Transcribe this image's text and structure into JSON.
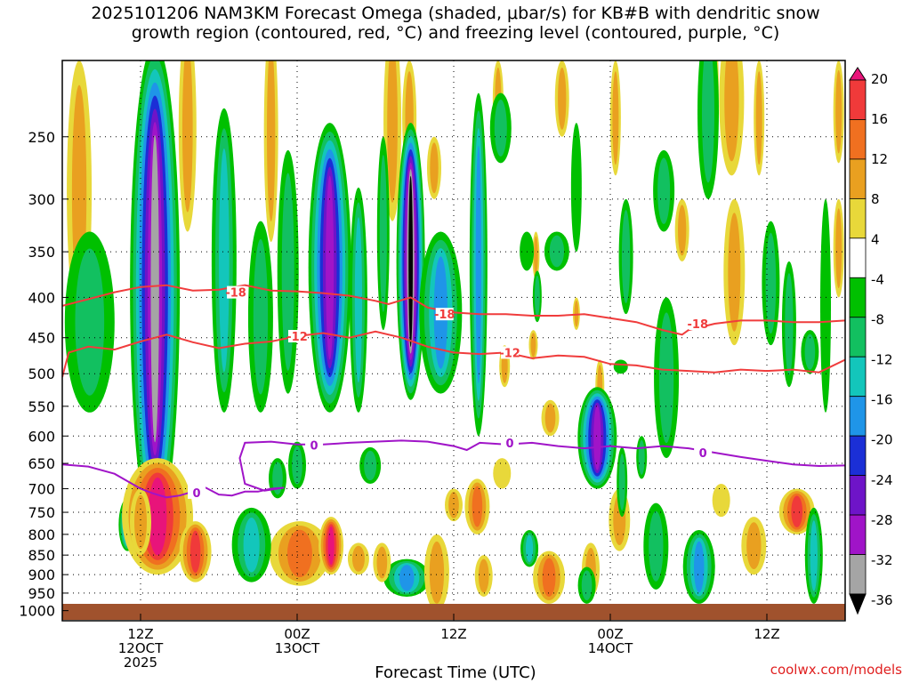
{
  "title": {
    "line1": "2025101206 NAM3KM Forecast Omega (shaded, μbar/s) for KB#B with dendritic snow",
    "line2": "growth region (contoured, red, °C) and freezing level (contoured, purple, °C)"
  },
  "credit": "coolwx.com/models",
  "chart_data": {
    "type": "heatmap",
    "title": "2025101206 NAM3KM Forecast Omega (shaded, μbar/s) for KB#B with dendritic snow growth region (contoured, red, °C) and freezing level (contoured, purple, °C)",
    "xlabel": "Forecast Time (UTC)",
    "ylabel": "",
    "x_ticks": [
      {
        "lines": [
          "12Z",
          "12OCT",
          "2025"
        ],
        "hour": 6
      },
      {
        "lines": [
          "00Z",
          "13OCT"
        ],
        "hour": 18
      },
      {
        "lines": [
          "12Z"
        ],
        "hour": 30
      },
      {
        "lines": [
          "00Z",
          "14OCT"
        ],
        "hour": 42
      },
      {
        "lines": [
          "12Z"
        ],
        "hour": 54
      }
    ],
    "xlim_hours": [
      0,
      60
    ],
    "y_ticks": [
      250,
      300,
      350,
      400,
      450,
      500,
      550,
      600,
      650,
      700,
      750,
      800,
      850,
      900,
      950,
      1000
    ],
    "ylim_mb": [
      200,
      1030
    ],
    "y_scale": "log-pressure",
    "grid": true,
    "colorbar": {
      "levels": [
        20,
        16,
        12,
        8,
        4,
        -4,
        -8,
        -12,
        -16,
        -20,
        -24,
        -28,
        -32,
        -36
      ],
      "label_levels": [
        "20",
        "16",
        "12",
        "8",
        "4",
        "-4",
        "-8",
        "-12",
        "-16",
        "-20",
        "-24",
        "-28",
        "-32",
        "-36"
      ],
      "colors": [
        "#e8147a",
        "#f03a3a",
        "#f07020",
        "#e9a020",
        "#e8d83a",
        "#ffffff",
        "#00c000",
        "#12c060",
        "#13c6bb",
        "#1f95e8",
        "#1b2fd6",
        "#6e14c8",
        "#a014c8",
        "#a5a5a5",
        "#000000"
      ]
    },
    "omega_features": [
      {
        "hour": 7.1,
        "p_top": 190,
        "p_bot": 800,
        "min": -32
      },
      {
        "hour": 8.3,
        "p_top": 330,
        "p_bot": 500,
        "min": -28
      },
      {
        "hour": 20.5,
        "p_top": 240,
        "p_bot": 560,
        "min": -28
      },
      {
        "hour": 26.7,
        "p_top": 240,
        "p_bot": 540,
        "min": -36
      },
      {
        "hour": 41.0,
        "p_top": 520,
        "p_bot": 700,
        "min": -28
      },
      {
        "hour": 7.3,
        "p_top": 640,
        "p_bot": 900,
        "max": 20
      },
      {
        "hour": 20.6,
        "p_top": 760,
        "p_bot": 900,
        "max": 20
      },
      {
        "hour": 56.3,
        "p_top": 700,
        "p_bot": 800,
        "max": 16
      }
    ],
    "series": [
      {
        "name": "-18",
        "color": "#f03c3c",
        "points": [
          [
            0,
            410
          ],
          [
            2,
            402
          ],
          [
            4,
            394
          ],
          [
            6,
            388
          ],
          [
            8,
            386
          ],
          [
            10,
            392
          ],
          [
            12,
            391
          ],
          [
            14,
            386
          ],
          [
            16,
            392
          ],
          [
            18,
            393
          ],
          [
            20,
            395
          ],
          [
            22,
            398
          ],
          [
            24,
            404
          ],
          [
            25,
            408
          ],
          [
            26.7,
            400
          ],
          [
            28,
            412
          ],
          [
            30,
            418
          ],
          [
            32,
            420
          ],
          [
            34,
            420
          ],
          [
            36,
            422
          ],
          [
            38,
            422
          ],
          [
            40,
            420
          ],
          [
            42,
            425
          ],
          [
            44,
            430
          ],
          [
            46,
            440
          ],
          [
            47.5,
            446
          ],
          [
            48,
            440
          ],
          [
            50,
            432
          ],
          [
            52,
            428
          ],
          [
            54,
            428
          ],
          [
            56,
            430
          ],
          [
            58,
            430
          ],
          [
            60,
            428
          ]
        ],
        "labels": [
          [
            13.3,
            394
          ],
          [
            29.3,
            420
          ],
          [
            48.7,
            432
          ]
        ]
      },
      {
        "name": "-12",
        "color": "#f03c3c",
        "points": [
          [
            0,
            505
          ],
          [
            0.5,
            470
          ],
          [
            2,
            462
          ],
          [
            4,
            466
          ],
          [
            6,
            455
          ],
          [
            8,
            446
          ],
          [
            10,
            456
          ],
          [
            12,
            464
          ],
          [
            14,
            458
          ],
          [
            16,
            455
          ],
          [
            18,
            448
          ],
          [
            20,
            444
          ],
          [
            22,
            450
          ],
          [
            24,
            442
          ],
          [
            26,
            450
          ],
          [
            28,
            462
          ],
          [
            30,
            470
          ],
          [
            32,
            472
          ],
          [
            34,
            470
          ],
          [
            36,
            478
          ],
          [
            38,
            474
          ],
          [
            40,
            476
          ],
          [
            42,
            486
          ],
          [
            44,
            488
          ],
          [
            46,
            494
          ],
          [
            48,
            496
          ],
          [
            50,
            498
          ],
          [
            52,
            494
          ],
          [
            54,
            496
          ],
          [
            56,
            494
          ],
          [
            58,
            498
          ],
          [
            60,
            480
          ]
        ],
        "labels": [
          [
            18,
            448
          ],
          [
            34.3,
            470
          ]
        ]
      },
      {
        "name": "0",
        "color": "#a014c8",
        "points": [
          [
            0,
            652
          ],
          [
            2,
            656
          ],
          [
            4,
            670
          ],
          [
            6,
            700
          ],
          [
            7,
            710
          ],
          [
            8,
            718
          ],
          [
            9,
            714
          ],
          [
            10,
            706
          ],
          [
            11,
            698
          ],
          [
            12,
            712
          ],
          [
            13,
            714
          ],
          [
            14,
            706
          ],
          [
            15,
            706
          ],
          [
            16,
            700
          ],
          [
            17,
            698
          ],
          [
            15.5,
            704
          ],
          [
            14,
            690
          ],
          [
            13.6,
            640
          ],
          [
            14,
            612
          ],
          [
            16,
            610
          ],
          [
            18,
            615
          ],
          [
            20,
            615
          ],
          [
            22,
            612
          ],
          [
            24,
            610
          ],
          [
            26,
            608
          ],
          [
            28,
            610
          ],
          [
            30,
            618
          ],
          [
            31,
            625
          ],
          [
            32,
            612
          ],
          [
            34,
            615
          ],
          [
            36,
            612
          ],
          [
            38,
            618
          ],
          [
            40,
            622
          ],
          [
            42,
            618
          ],
          [
            44,
            622
          ],
          [
            46,
            618
          ],
          [
            48,
            622
          ],
          [
            50,
            630
          ],
          [
            52,
            638
          ],
          [
            54,
            645
          ],
          [
            56,
            652
          ],
          [
            58,
            655
          ],
          [
            60,
            654
          ]
        ],
        "labels": [
          [
            10.3,
            708
          ],
          [
            19.3,
            616
          ],
          [
            34.3,
            612
          ],
          [
            49.1,
            630
          ]
        ]
      }
    ]
  }
}
